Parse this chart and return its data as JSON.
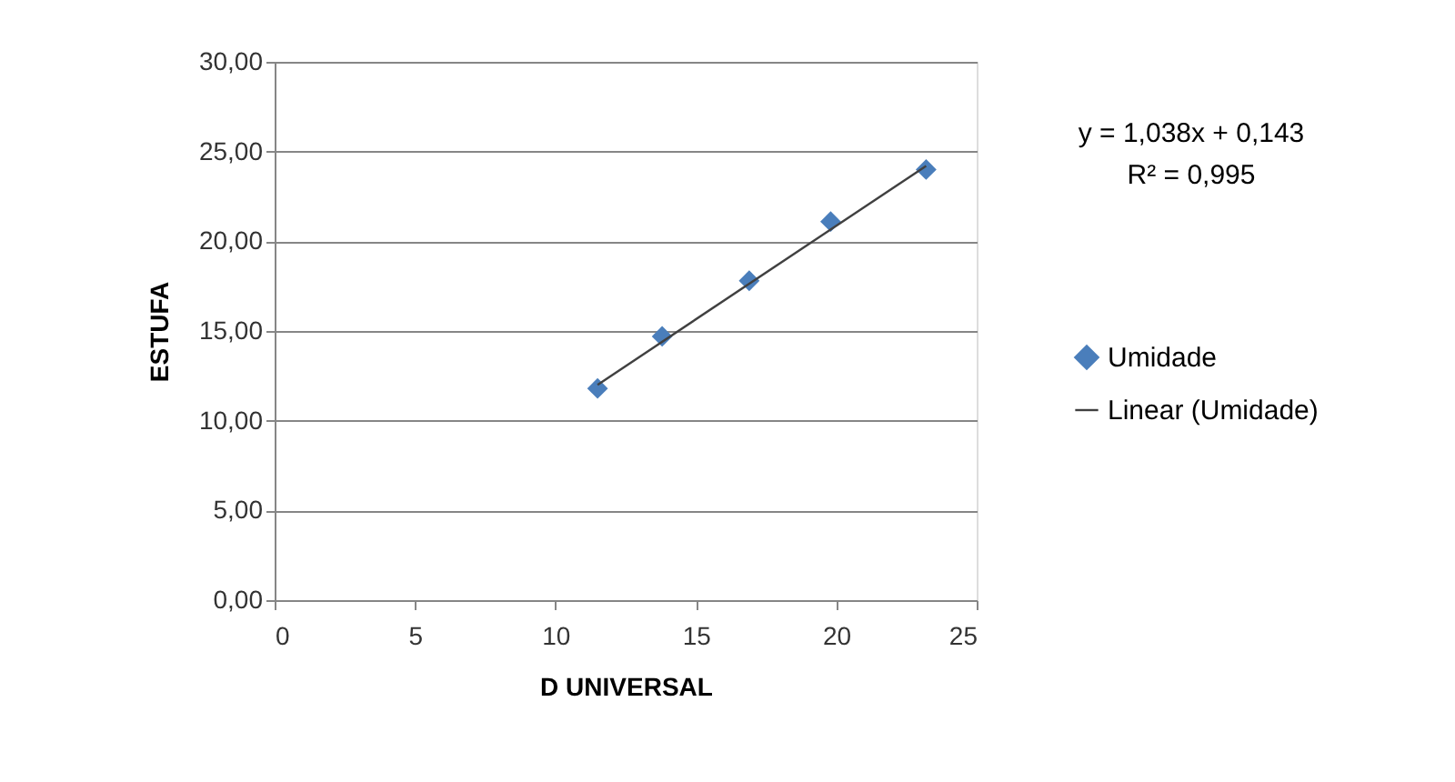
{
  "chart_data": {
    "type": "scatter",
    "xlabel": "D UNIVERSAL",
    "ylabel": "ESTUFA",
    "xlim": [
      0,
      25
    ],
    "xticks": [
      0,
      5,
      10,
      15,
      20,
      25
    ],
    "ylim": [
      0,
      30
    ],
    "yticks": [
      {
        "value": 0,
        "label": "0,00"
      },
      {
        "value": 5,
        "label": "5,00"
      },
      {
        "value": 10,
        "label": "10,00"
      },
      {
        "value": 15,
        "label": "15,00"
      },
      {
        "value": 20,
        "label": "20,00"
      },
      {
        "value": 25,
        "label": "25,00"
      },
      {
        "value": 30,
        "label": "30,00"
      }
    ],
    "grid": "y",
    "legend": "right",
    "series": [
      {
        "name": "Umidade",
        "marker": "diamond",
        "color": "#4a7ebb",
        "x": [
          11.5,
          13.8,
          16.9,
          19.8,
          23.2
        ],
        "values": [
          11.8,
          14.7,
          17.8,
          21.1,
          24.0
        ]
      },
      {
        "name": "Linear (Umidade)",
        "type": "line",
        "marker": "none",
        "color": "#404040",
        "line_style": "solid",
        "x": [
          11.5,
          23.2
        ],
        "values": [
          12.0,
          24.2
        ]
      }
    ],
    "annotations": [
      "y = 1,038x + 0,143",
      "R² = 0,995"
    ]
  }
}
